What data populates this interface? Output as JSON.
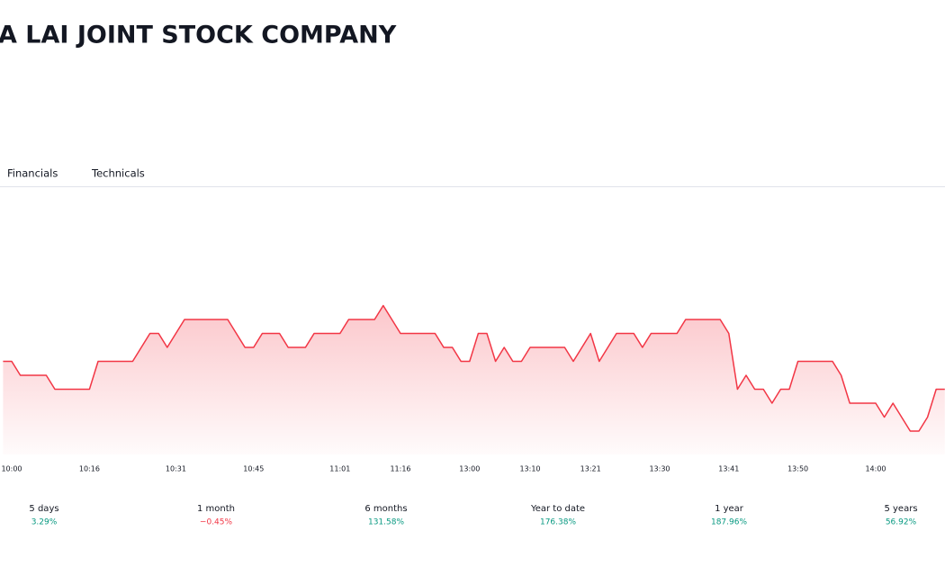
{
  "header": {
    "title": "A LAI JOINT STOCK COMPANY"
  },
  "tabs": [
    "Financials",
    "Technicals"
  ],
  "chart_data": {
    "type": "area",
    "color": "#f23645",
    "ylim": [
      0,
      11
    ],
    "categories": [
      null,
      "10:00",
      null,
      null,
      null,
      null,
      null,
      null,
      null,
      null,
      "10:16",
      null,
      null,
      null,
      null,
      null,
      null,
      null,
      null,
      null,
      "10:31",
      null,
      null,
      null,
      null,
      null,
      null,
      null,
      null,
      "10:45",
      null,
      null,
      null,
      null,
      null,
      null,
      null,
      null,
      null,
      "11:01",
      null,
      null,
      null,
      null,
      null,
      null,
      "11:16",
      null,
      null,
      null,
      null,
      null,
      null,
      null,
      "13:00",
      null,
      null,
      null,
      null,
      null,
      null,
      "13:10",
      null,
      null,
      null,
      null,
      null,
      null,
      "13:21",
      null,
      null,
      null,
      null,
      null,
      null,
      null,
      "13:30",
      null,
      null,
      null,
      null,
      null,
      null,
      null,
      "13:41",
      null,
      null,
      null,
      null,
      null,
      null,
      null,
      "13:50",
      null,
      null,
      null,
      null,
      null,
      null,
      null,
      null,
      "14:00",
      null,
      null,
      null,
      null,
      null,
      null,
      null,
      null
    ],
    "values": [
      6,
      6,
      5,
      5,
      5,
      5,
      4,
      4,
      4,
      4,
      4,
      6,
      6,
      6,
      6,
      6,
      7,
      8,
      8,
      7,
      8,
      9,
      9,
      9,
      9,
      9,
      9,
      8,
      7,
      7,
      8,
      8,
      8,
      7,
      7,
      7,
      8,
      8,
      8,
      8,
      9,
      9,
      9,
      9,
      10,
      9,
      8,
      8,
      8,
      8,
      8,
      7,
      7,
      6,
      6,
      8,
      8,
      6,
      7,
      6,
      6,
      7,
      7,
      7,
      7,
      7,
      6,
      7,
      8,
      6,
      7,
      8,
      8,
      8,
      7,
      8,
      8,
      8,
      8,
      9,
      9,
      9,
      9,
      9,
      8,
      4,
      5,
      4,
      4,
      3,
      4,
      4,
      6,
      6,
      6,
      6,
      6,
      5,
      3,
      3,
      3,
      3,
      2,
      3,
      2,
      1,
      1,
      2,
      4,
      4
    ]
  },
  "performance": [
    {
      "label": "5 days",
      "change": "3.29%",
      "positive": true
    },
    {
      "label": "1 month",
      "change": "−0.45%",
      "positive": false
    },
    {
      "label": "6 months",
      "change": "131.58%",
      "positive": true
    },
    {
      "label": "Year to date",
      "change": "176.38%",
      "positive": true
    },
    {
      "label": "1 year",
      "change": "187.96%",
      "positive": true
    },
    {
      "label": "5 years",
      "change": "56.92%",
      "positive": true
    }
  ]
}
